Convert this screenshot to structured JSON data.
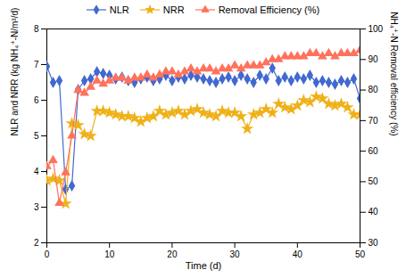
{
  "chart_data": {
    "type": "line",
    "xlabel": "Time (d)",
    "ylabel": "NLR and NRR (kg NH₄⁺-N/m³/d)",
    "y2label": "NH₄⁺-N Removal efficiency (%)",
    "x": [
      0,
      1,
      2,
      3,
      4,
      5,
      6,
      7,
      8,
      9,
      10,
      11,
      12,
      13,
      14,
      15,
      16,
      17,
      18,
      19,
      20,
      21,
      22,
      23,
      24,
      25,
      26,
      27,
      28,
      29,
      30,
      31,
      32,
      33,
      34,
      35,
      36,
      37,
      38,
      39,
      40,
      41,
      42,
      43,
      44,
      45,
      46,
      47,
      48,
      49,
      50
    ],
    "series": [
      {
        "name": "NLR",
        "marker": "diamond",
        "values": [
          6.95,
          6.5,
          6.55,
          3.5,
          3.6,
          6.3,
          6.55,
          6.6,
          6.8,
          6.75,
          6.7,
          6.6,
          6.65,
          6.55,
          6.5,
          6.6,
          6.65,
          6.55,
          6.6,
          6.7,
          6.55,
          6.65,
          6.6,
          6.7,
          6.65,
          6.6,
          6.55,
          6.5,
          6.6,
          6.65,
          6.55,
          6.7,
          6.6,
          6.5,
          6.7,
          6.6,
          6.9,
          6.55,
          6.65,
          6.55,
          6.65,
          6.6,
          6.7,
          6.5,
          6.55,
          6.5,
          6.45,
          6.55,
          6.5,
          6.6,
          6.05
        ]
      },
      {
        "name": "NRR",
        "marker": "star",
        "values": [
          3.75,
          3.8,
          3.75,
          3.1,
          5.35,
          5.3,
          5.05,
          5.0,
          5.7,
          5.7,
          5.65,
          5.6,
          5.55,
          5.55,
          5.5,
          5.4,
          5.5,
          5.55,
          5.7,
          5.6,
          5.65,
          5.7,
          5.6,
          5.7,
          5.75,
          5.65,
          5.6,
          5.55,
          5.7,
          5.65,
          5.65,
          5.55,
          5.2,
          5.6,
          5.65,
          5.75,
          5.65,
          5.9,
          5.8,
          5.75,
          5.85,
          6.0,
          5.95,
          6.1,
          6.05,
          5.9,
          5.85,
          5.9,
          5.8,
          5.6,
          5.6
        ]
      },
      {
        "name": "Removal Efficiency (%)",
        "marker": "triangle",
        "axis": "y2",
        "values": [
          55,
          57,
          43,
          53,
          65,
          80,
          79,
          81,
          83,
          82,
          83,
          84,
          84,
          83,
          84,
          84,
          85,
          84,
          85,
          86,
          86,
          85,
          86,
          87,
          86,
          87,
          87,
          86,
          87,
          87,
          88,
          87,
          88,
          88,
          88,
          89,
          90,
          90,
          91,
          91,
          91,
          91,
          92,
          92,
          91,
          92,
          91,
          92,
          92,
          92,
          93
        ]
      }
    ],
    "xlim": [
      0,
      50
    ],
    "xticks": [
      0,
      10,
      20,
      30,
      40,
      50
    ],
    "ylim": [
      2,
      8
    ],
    "yticks": [
      2,
      3,
      4,
      5,
      6,
      7,
      8
    ],
    "y2lim": [
      30,
      100
    ],
    "y2ticks": [
      30,
      40,
      50,
      60,
      70,
      80,
      90,
      100
    ],
    "grid": false,
    "legend": "top"
  }
}
